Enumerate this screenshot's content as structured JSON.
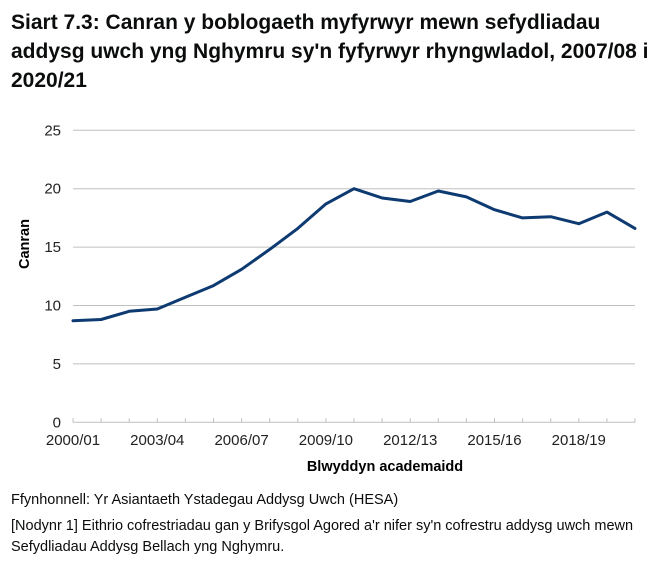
{
  "title": "Siart 7.3: Canran y boblogaeth myfyrwyr mewn sefydliadau addysg uwch yng Nghymru sy'n fyfyrwyr rhyngwladol, 2007/08 i 2020/21",
  "source": "Ffynhonnell: Yr Asiantaeth Ystadegau Addysg Uwch (HESA)",
  "note": "[Nodynr 1] Eithrio cofrestriadau gan y Brifysgol Agored a'r nifer sy'n cofrestru addysg uwch mewn Sefydliadau Addysg Bellach yng Nghymru.",
  "colors": {
    "line": "#0e3a72",
    "grid": "#c0c0c0",
    "axis": "#bfbfbf"
  },
  "chart_data": {
    "type": "line",
    "title": "Siart 7.3: Canran y boblogaeth myfyrwyr mewn sefydliadau addysg uwch yng Nghymru sy'n fyfyrwyr rhyngwladol, 2007/08 i 2020/21",
    "xlabel": "Blwyddyn academaidd",
    "ylabel": "Canran",
    "ylim": [
      0,
      25
    ],
    "yticks": [
      0,
      5,
      10,
      15,
      20,
      25
    ],
    "grid": true,
    "legend": null,
    "categories": [
      "2000/01",
      "2001/02",
      "2002/03",
      "2003/04",
      "2004/05",
      "2005/06",
      "2006/07",
      "2007/08",
      "2008/09",
      "2009/10",
      "2010/11",
      "2011/12",
      "2012/13",
      "2013/14",
      "2014/15",
      "2015/16",
      "2016/17",
      "2017/18",
      "2018/19",
      "2019/20",
      "2020/21"
    ],
    "xtick_labels": [
      "2000/01",
      "2003/04",
      "2006/07",
      "2009/10",
      "2012/13",
      "2015/16",
      "2018/19"
    ],
    "series": [
      {
        "name": "Canran",
        "values": [
          8.7,
          8.8,
          9.5,
          9.7,
          10.7,
          11.7,
          13.1,
          14.8,
          16.6,
          18.7,
          20.0,
          19.2,
          18.9,
          19.8,
          19.3,
          18.2,
          17.5,
          17.6,
          17.0,
          18.0,
          16.6
        ]
      }
    ]
  }
}
